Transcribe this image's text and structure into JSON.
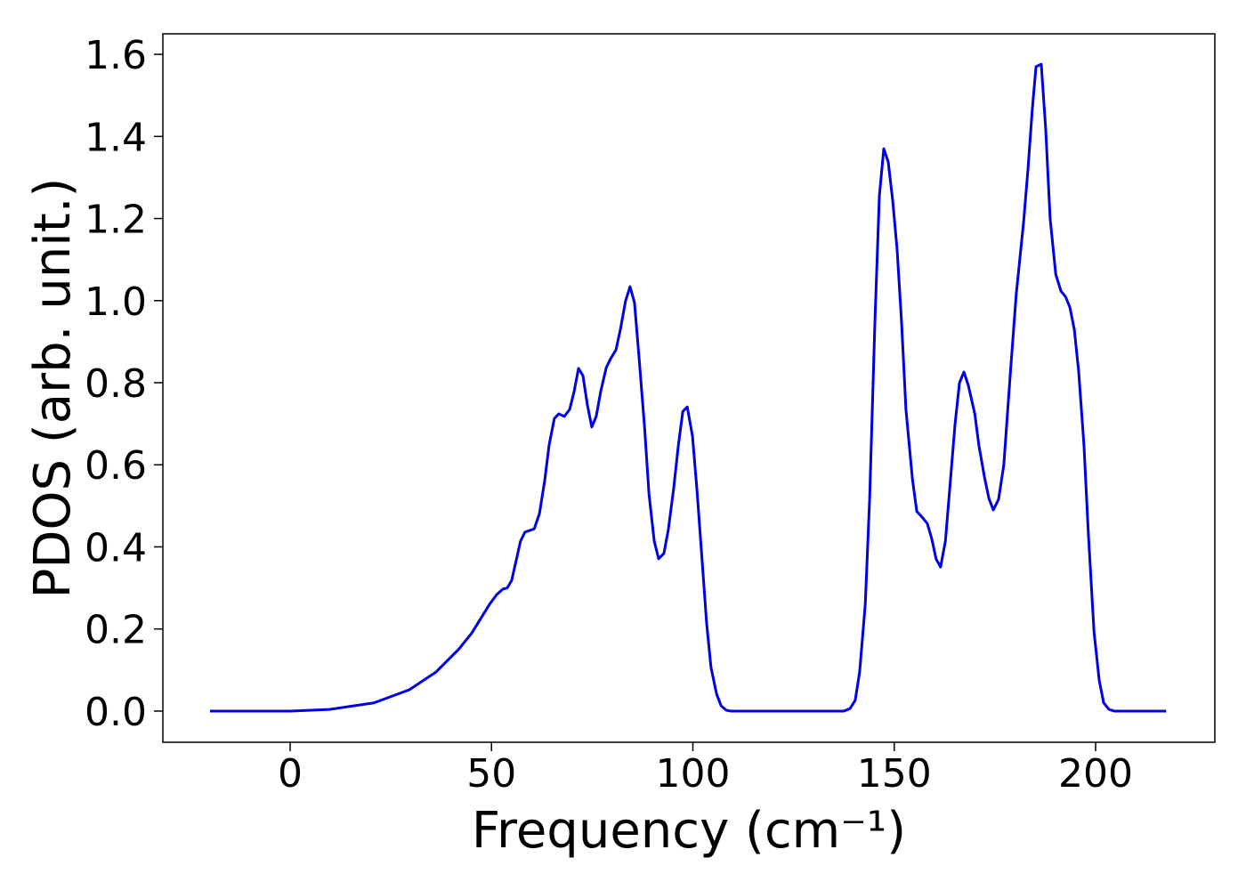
{
  "chart_data": {
    "type": "line",
    "xlabel": "Frequency (cm⁻¹)",
    "ylabel": "PDOS (arb. unit.)",
    "xlim": [
      -31.6,
      229.6
    ],
    "ylim": [
      -0.076,
      1.65
    ],
    "xticks": [
      0,
      50,
      100,
      150,
      200
    ],
    "yticks": [
      {
        "value": 0,
        "label": "0.0"
      },
      0.2,
      0.4,
      0.6,
      0.8,
      {
        "value": 1,
        "label": "1.0"
      },
      1.2,
      1.4,
      1.6
    ],
    "grid": false,
    "series": [
      {
        "color": "#0000e6",
        "x": [
          -19.9,
          0,
          9.7,
          20.8,
          29.6,
          36.2,
          41.8,
          45.1,
          47.3,
          49.5,
          51.3,
          52.8,
          53.9,
          55,
          56.1,
          57.2,
          58.3,
          60.6,
          61.9,
          63.2,
          64.3,
          65.6,
          66.7,
          68.1,
          69.4,
          70.5,
          71.6,
          72.7,
          73.8,
          74.9,
          76,
          77.1,
          78.5,
          79.6,
          80.9,
          82,
          83.3,
          84.4,
          85.5,
          86.6,
          88,
          89.1,
          90.4,
          91.5,
          92.8,
          93.9,
          95.2,
          96.4,
          97.5,
          98.6,
          99.9,
          101,
          102.3,
          103.4,
          104.5,
          105.9,
          107,
          108.3,
          109.4,
          137.5,
          139,
          140.3,
          141.4,
          142.8,
          143.9,
          145.2,
          146.3,
          147.4,
          148.5,
          149.6,
          150.7,
          151.8,
          152.9,
          154.5,
          155.6,
          156.7,
          158.2,
          159.3,
          160.4,
          161.5,
          162.7,
          163.8,
          165.1,
          166.2,
          167.3,
          168.4,
          170,
          171,
          172.4,
          173.5,
          174.6,
          175.9,
          177.2,
          178.8,
          180.3,
          182.1,
          183.2,
          184.3,
          185.2,
          186.5,
          187.6,
          188.7,
          190.1,
          191.4,
          192.5,
          193.6,
          194.7,
          195.8,
          197.1,
          198.2,
          199.6,
          200.9,
          202,
          203.3,
          204.6,
          217.5
        ],
        "values": [
          0,
          0,
          0.004,
          0.02,
          0.052,
          0.095,
          0.15,
          0.19,
          0.225,
          0.26,
          0.284,
          0.297,
          0.3,
          0.318,
          0.366,
          0.414,
          0.436,
          0.444,
          0.481,
          0.561,
          0.648,
          0.713,
          0.724,
          0.718,
          0.735,
          0.778,
          0.835,
          0.817,
          0.746,
          0.692,
          0.718,
          0.778,
          0.837,
          0.859,
          0.88,
          0.93,
          1.0,
          1.034,
          0.995,
          0.865,
          0.692,
          0.529,
          0.414,
          0.371,
          0.384,
          0.442,
          0.54,
          0.648,
          0.73,
          0.741,
          0.67,
          0.54,
          0.366,
          0.215,
          0.106,
          0.041,
          0.013,
          0.002,
          0,
          0,
          0.006,
          0.026,
          0.095,
          0.26,
          0.52,
          0.95,
          1.255,
          1.37,
          1.338,
          1.245,
          1.125,
          0.95,
          0.735,
          0.566,
          0.486,
          0.475,
          0.457,
          0.42,
          0.37,
          0.351,
          0.414,
          0.545,
          0.7,
          0.8,
          0.826,
          0.793,
          0.724,
          0.648,
          0.57,
          0.518,
          0.49,
          0.516,
          0.6,
          0.82,
          1.017,
          1.19,
          1.32,
          1.47,
          1.57,
          1.576,
          1.418,
          1.2,
          1.064,
          1.023,
          1.01,
          0.984,
          0.93,
          0.826,
          0.648,
          0.431,
          0.193,
          0.074,
          0.02,
          0.004,
          0,
          0
        ]
      }
    ]
  }
}
